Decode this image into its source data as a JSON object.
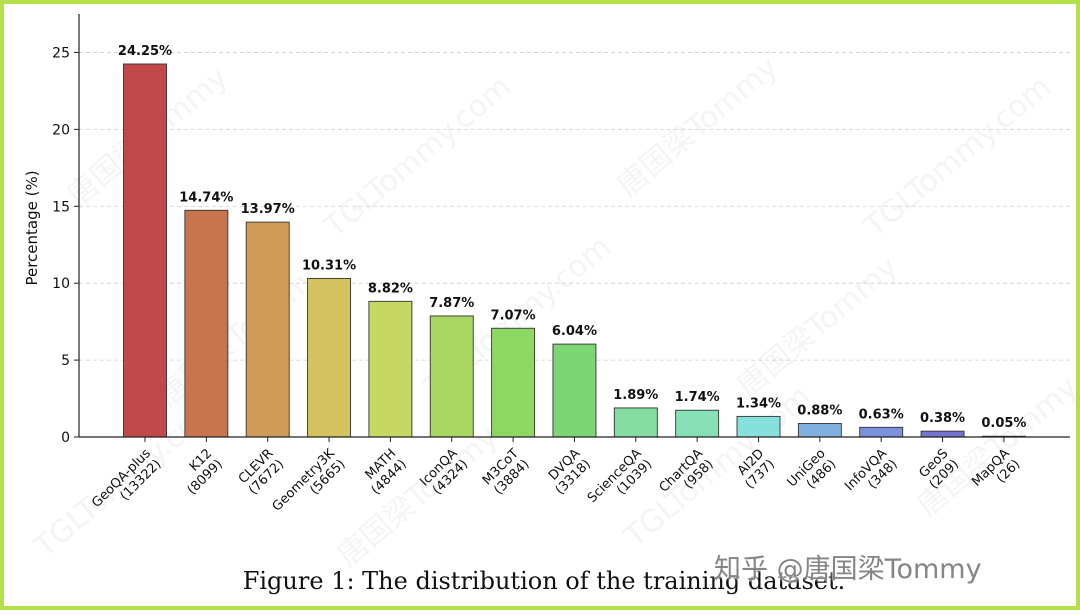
{
  "watermark": {
    "brand": "知乎 @唐国梁Tommy",
    "tiles": [
      "唐国梁Tommy",
      "TGLTommy.com"
    ]
  },
  "caption": "Figure 1: The distribution of the training dataset.",
  "chart_data": {
    "type": "bar",
    "title": "",
    "xlabel": "",
    "ylabel": "Percentage (%)",
    "ylim": [
      0,
      27.5
    ],
    "yticks": [
      0,
      5,
      10,
      15,
      20,
      25
    ],
    "grid": "horizontal-dashed",
    "categories": [
      "GeoQA-plus\n(13322)",
      "K12\n(8099)",
      "CLEVR\n(7672)",
      "Geometry3K\n(5665)",
      "MATH\n(4844)",
      "IconQA\n(4324)",
      "M3CoT\n(3884)",
      "DVQA\n(3318)",
      "ScienceQA\n(1039)",
      "ChartQA\n(958)",
      "AI2D\n(737)",
      "UniGeo\n(486)",
      "InfoVQA\n(348)",
      "GeoS\n(209)",
      "MapQA\n(26)"
    ],
    "values": [
      24.25,
      14.74,
      13.97,
      10.31,
      8.82,
      7.87,
      7.07,
      6.04,
      1.89,
      1.74,
      1.34,
      0.88,
      0.63,
      0.38,
      0.05
    ],
    "value_labels": [
      "24.25%",
      "14.74%",
      "13.97%",
      "10.31%",
      "8.82%",
      "7.87%",
      "7.07%",
      "6.04%",
      "1.89%",
      "1.74%",
      "1.34%",
      "0.88%",
      "0.63%",
      "0.38%",
      "0.05%"
    ],
    "colors": [
      "#c0484a",
      "#c8744e",
      "#cf9c58",
      "#d4c25e",
      "#c6d862",
      "#a9d862",
      "#8dd862",
      "#7bd673",
      "#84dca0",
      "#86e0b6",
      "#86e0dc",
      "#7eb1e0",
      "#7c90dc",
      "#7474d0",
      "#7060c4"
    ]
  }
}
